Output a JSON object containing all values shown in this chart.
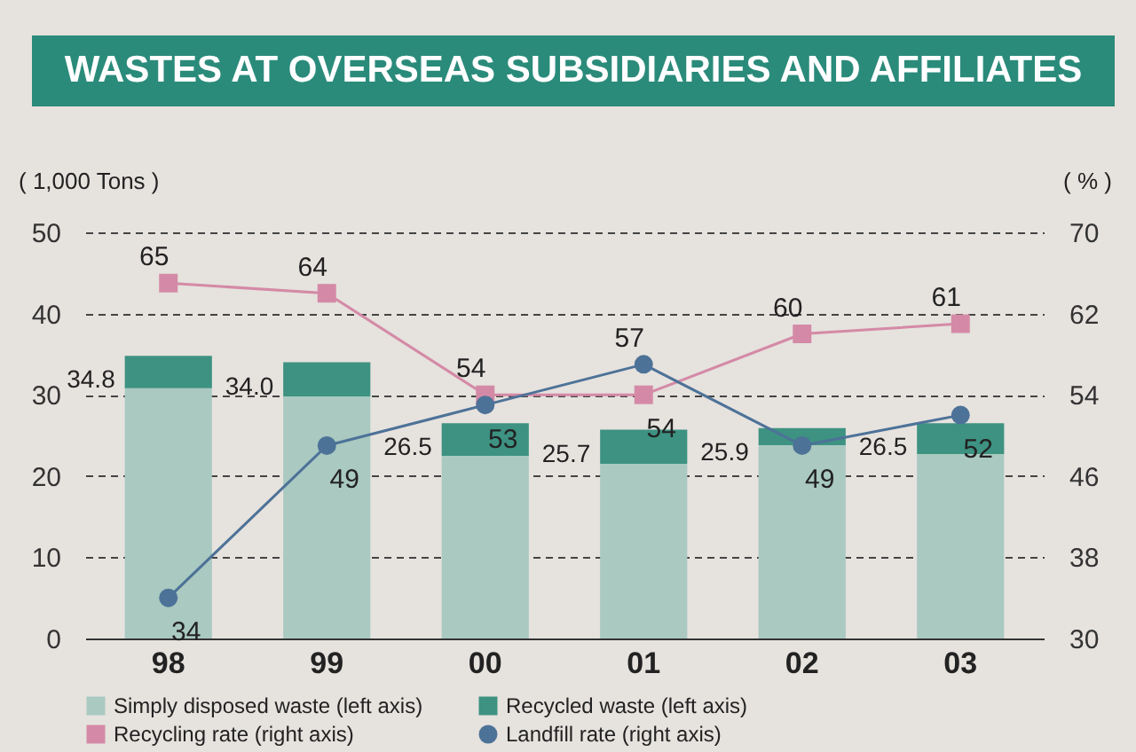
{
  "chart_data": {
    "type": "bar",
    "title": "WASTES AT OVERSEAS SUBSIDIARIES AND AFFILIATES",
    "ylabel": "( 1,000 Tons )",
    "y2label": "( % )",
    "categories": [
      "98",
      "99",
      "00",
      "01",
      "02",
      "03"
    ],
    "stacked": true,
    "series": [
      {
        "name": "Simply disposed waste (left axis)",
        "color": "#a9c9c1",
        "values": [
          30.8,
          29.8,
          22.5,
          21.5,
          23.8,
          22.7
        ]
      },
      {
        "name": "Recycled waste (left axis)",
        "color": "#3d9282",
        "values": [
          4.0,
          4.2,
          4.0,
          4.2,
          2.1,
          3.8
        ]
      },
      {
        "name": "Recycling rate (right axis)",
        "type": "line",
        "axis": "y2",
        "color": "#d48aa6",
        "marker": "square",
        "values": [
          65,
          64,
          54,
          54,
          60,
          61
        ],
        "value_labels": [
          "65",
          "64",
          "54",
          "54",
          "60",
          "61"
        ]
      },
      {
        "name": "Landfill rate (right axis)",
        "type": "line",
        "axis": "y2",
        "color": "#4d7298",
        "marker": "circle",
        "values": [
          34,
          49,
          53,
          57,
          49,
          52
        ],
        "value_labels": [
          "34",
          "49",
          "53",
          "57",
          "49",
          "52"
        ]
      }
    ],
    "totals": [
      "34.8",
      "34.0",
      "26.5",
      "25.7",
      "25.9",
      "26.5"
    ],
    "ylim": [
      0,
      50
    ],
    "yticks": [
      0,
      10,
      20,
      30,
      40,
      50
    ],
    "y2lim": [
      30,
      70
    ],
    "y2ticks": [
      30,
      38,
      46,
      54,
      62,
      70
    ],
    "grid": "y",
    "legend": "bottom"
  }
}
